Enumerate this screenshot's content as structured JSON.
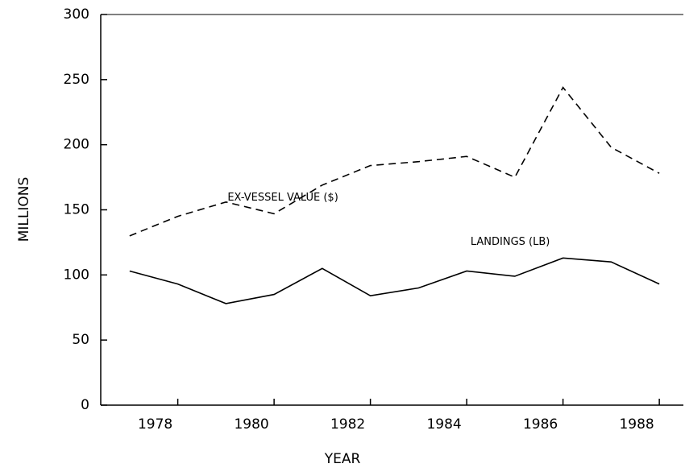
{
  "chart_data": {
    "type": "line",
    "x": [
      1977,
      1978,
      1979,
      1980,
      1981,
      1982,
      1983,
      1984,
      1985,
      1986,
      1987,
      1988
    ],
    "series": [
      {
        "name": "EX-VESSEL VALUE ($)",
        "color": "#000000",
        "dash": true,
        "values": [
          130,
          145,
          156,
          147,
          169,
          184,
          187,
          191,
          175,
          244,
          198,
          178
        ]
      },
      {
        "name": "LANDINGS (LB)",
        "color": "#000000",
        "dash": false,
        "values": [
          103,
          93,
          78,
          85,
          105,
          84,
          90,
          103,
          99,
          113,
          110,
          93
        ]
      }
    ],
    "x_label": "YEAR",
    "y_label": "MILLIONS",
    "xlim": [
      1976.4,
      1988.5
    ],
    "xticks": [
      1978,
      1980,
      1982,
      1984,
      1986,
      1988
    ],
    "ylim": [
      0,
      300
    ],
    "yticks": [
      0,
      50,
      100,
      150,
      200,
      250,
      300
    ],
    "grid": false
  }
}
